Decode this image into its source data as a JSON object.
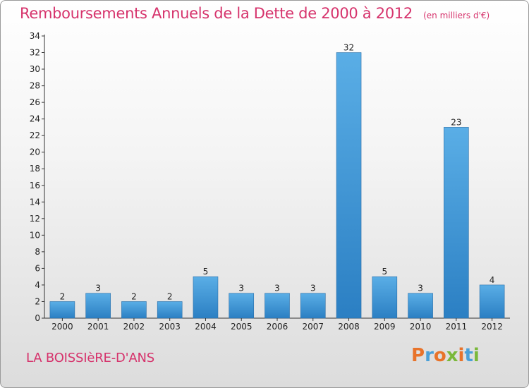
{
  "chart_data": {
    "type": "bar",
    "title": "Remboursements Annuels de la Dette de 2000 à 2012",
    "subtitle": "(en milliers d'€)",
    "categories": [
      "2000",
      "2001",
      "2002",
      "2003",
      "2004",
      "2005",
      "2006",
      "2007",
      "2008",
      "2009",
      "2010",
      "2011",
      "2012"
    ],
    "values": [
      2,
      3,
      2,
      2,
      5,
      3,
      3,
      3,
      32,
      5,
      3,
      23,
      4
    ],
    "ylim": [
      0,
      34
    ],
    "yticks": [
      0,
      2,
      4,
      6,
      8,
      10,
      12,
      14,
      16,
      18,
      20,
      22,
      24,
      26,
      28,
      30,
      32,
      34
    ],
    "grid": false,
    "bar_color_top": "#5aaee6",
    "bar_color_bottom": "#2b7fc3"
  },
  "footer": {
    "place": "LA BOISSIèRE-D'ANS",
    "brand": "Proxiti",
    "brand_colors": [
      "#e8732a",
      "#4aa0d8",
      "#e8732a",
      "#7ab83a",
      "#e8732a",
      "#4aa0d8",
      "#7ab83a"
    ]
  }
}
